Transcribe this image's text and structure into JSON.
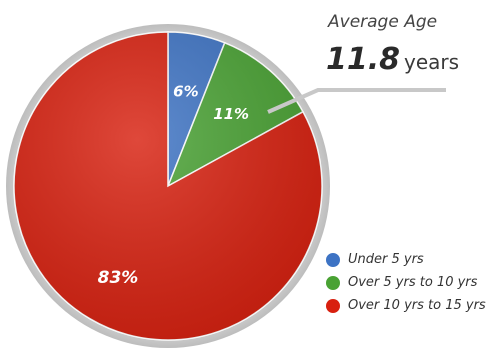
{
  "chart_data": {
    "type": "pie",
    "categories": [
      "Under 5 yrs",
      "Over 5 yrs to 10 yrs",
      "Over 10 yrs to 15 yrs"
    ],
    "values": [
      6,
      11,
      83
    ],
    "labels": [
      "6%",
      "11%",
      "83%"
    ],
    "colors": [
      "#3d73c4",
      "#49a233",
      "#d8200f"
    ],
    "legend_position": "bottom-right",
    "annotation": {
      "title": "Average Age",
      "value": "11.8",
      "unit": "years"
    }
  }
}
